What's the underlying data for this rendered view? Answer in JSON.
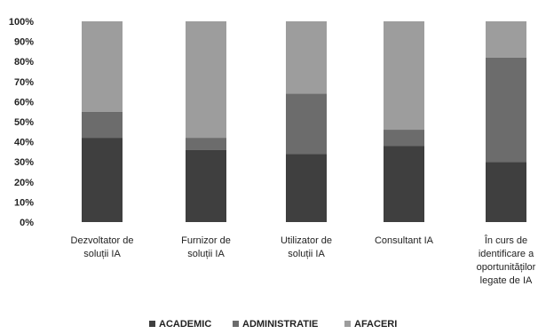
{
  "chart_data": {
    "type": "bar",
    "stacked": true,
    "orientation": "vertical",
    "categories": [
      [
        "Dezvoltator de",
        "soluții IA"
      ],
      [
        "Furnizor de",
        "soluții IA"
      ],
      [
        "Utilizator de",
        "soluții IA"
      ],
      [
        "Consultant IA"
      ],
      [
        "În curs de",
        "identificare a",
        "oportunităților",
        "legate de IA"
      ]
    ],
    "series": [
      {
        "name": "ACADEMIC",
        "values": [
          42,
          36,
          34,
          38,
          30
        ]
      },
      {
        "name": "ADMINISTRATIE",
        "values": [
          13,
          6,
          30,
          8,
          52
        ]
      },
      {
        "name": "AFACERI",
        "values": [
          45,
          58,
          36,
          54,
          18
        ]
      }
    ],
    "colors": [
      "#3f3f3f",
      "#6c6c6c",
      "#9d9d9d"
    ],
    "yticks": [
      "0%",
      "10%",
      "20%",
      "30%",
      "40%",
      "50%",
      "60%",
      "70%",
      "80%",
      "90%",
      "100%"
    ],
    "ylim": [
      0,
      100
    ],
    "grid": false,
    "legend_position": "bottom"
  }
}
